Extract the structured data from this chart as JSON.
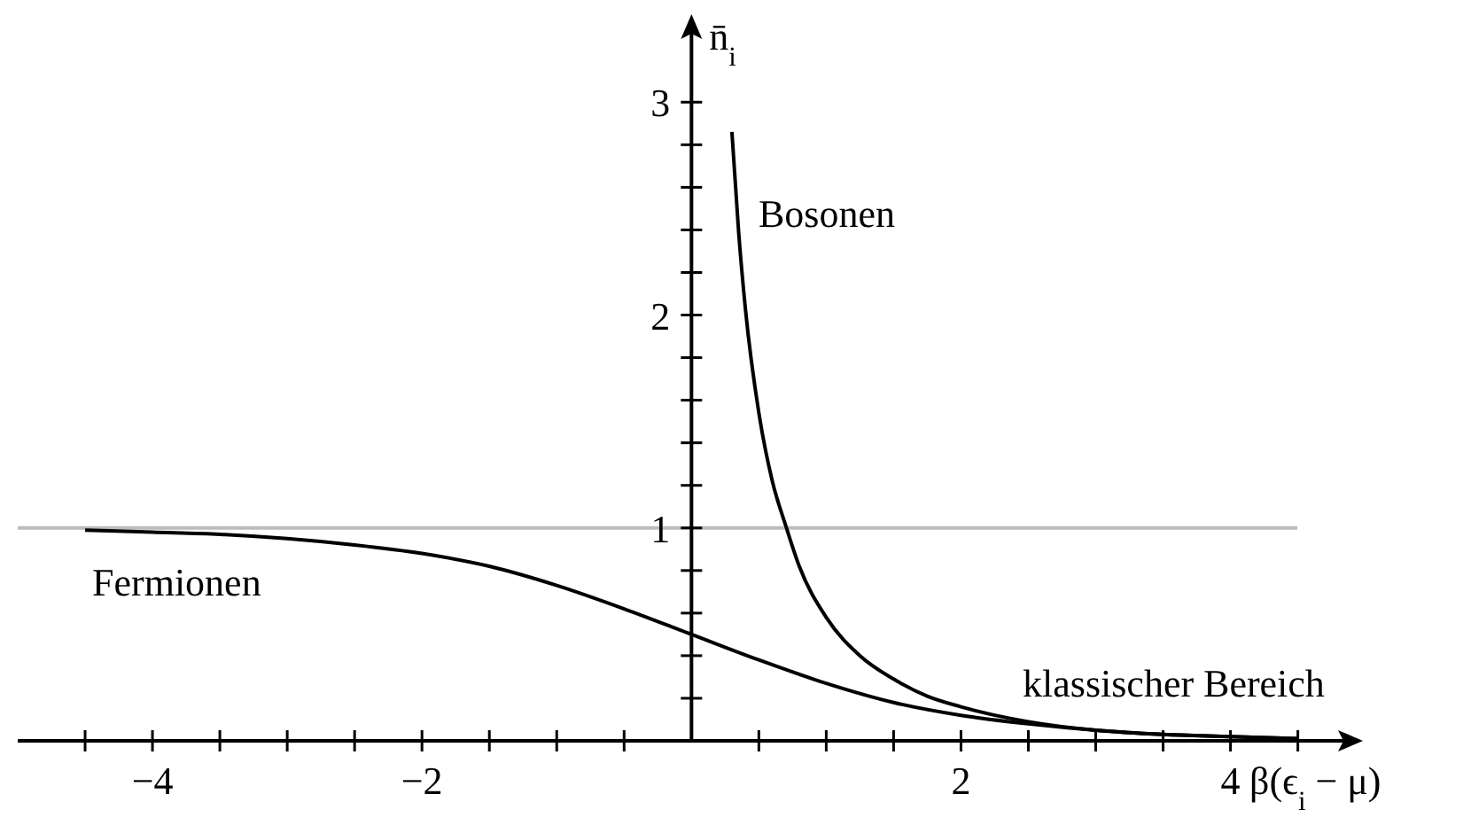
{
  "chart_data": {
    "type": "line",
    "xlabel": "β(ϵ$_{i}$ − μ)",
    "ylabel": "n̄$_{i}$",
    "xlim": [
      -5,
      4.93
    ],
    "ylim": [
      0,
      3.38
    ],
    "xticks": [
      -4,
      {
        "value": -4.5,
        "label": null
      },
      {
        "value": -3.5,
        "label": null
      },
      {
        "value": -3,
        "label": null
      },
      {
        "value": -2.5,
        "label": null
      },
      -2,
      {
        "value": -1.5,
        "label": null
      },
      {
        "value": -1,
        "label": null
      },
      {
        "value": -0.5,
        "label": null
      },
      {
        "value": 0.5,
        "label": null
      },
      {
        "value": 1,
        "label": null
      },
      {
        "value": 1.5,
        "label": null
      },
      2,
      {
        "value": 2.5,
        "label": null
      },
      {
        "value": 3,
        "label": null
      },
      {
        "value": 3.5,
        "label": null
      },
      4,
      {
        "value": 4.5,
        "label": null
      }
    ],
    "yticks": [
      {
        "value": 0.2,
        "label": null
      },
      {
        "value": 0.4,
        "label": null
      },
      {
        "value": 0.6,
        "label": null
      },
      {
        "value": 0.8,
        "label": null
      },
      1,
      {
        "value": 1.2,
        "label": null
      },
      {
        "value": 1.4,
        "label": null
      },
      {
        "value": 1.6,
        "label": null
      },
      {
        "value": 1.8,
        "label": null
      },
      2,
      {
        "value": 2.2,
        "label": null
      },
      {
        "value": 2.4,
        "label": null
      },
      {
        "value": 2.6,
        "label": null
      },
      {
        "value": 2.8,
        "label": null
      },
      3
    ],
    "series": [
      {
        "color": "#000000",
        "x": [
          -4.5,
          -4,
          -3.5,
          -3,
          -2.5,
          -2,
          -1.5,
          -1,
          -0.5,
          0,
          0.5,
          1,
          1.5,
          2,
          2.5,
          3,
          3.5,
          4,
          4.5
        ],
        "values": [
          0.99,
          0.98,
          0.97,
          0.95,
          0.92,
          0.88,
          0.82,
          0.73,
          0.62,
          0.5,
          0.38,
          0.27,
          0.18,
          0.12,
          0.08,
          0.05,
          0.03,
          0.02,
          0.01
        ]
      },
      {
        "color": "#000000",
        "x": [
          0.3,
          0.35,
          0.4,
          0.5,
          0.6,
          0.7,
          0.8,
          1,
          1.25,
          1.5,
          1.75,
          2,
          2.5,
          3,
          3.5,
          4,
          4.5
        ],
        "values": [
          2.86,
          2.39,
          2.03,
          1.54,
          1.22,
          1.01,
          0.82,
          0.58,
          0.4,
          0.29,
          0.21,
          0.16,
          0.09,
          0.05,
          0.03,
          0.02,
          0.01
        ]
      }
    ],
    "ref_lines": [
      {
        "axis": "y",
        "value": 1,
        "color": "#bbbbbb"
      }
    ],
    "annotations": [
      "Bosonen",
      "Fermionen",
      "klassischer Bereich"
    ],
    "grid": false
  }
}
